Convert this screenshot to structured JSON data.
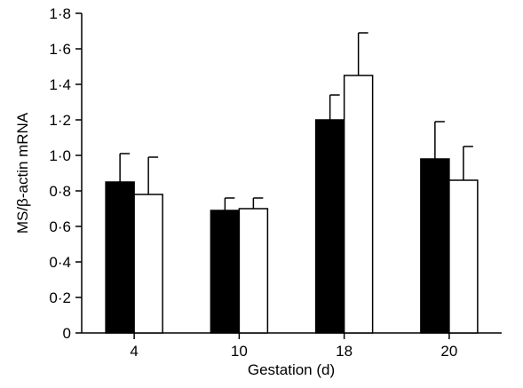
{
  "chart_data": {
    "type": "bar",
    "categories": [
      "4",
      "10",
      "18",
      "20"
    ],
    "series": [
      {
        "color": "#000000",
        "values": [
          0.85,
          0.69,
          1.2,
          0.98
        ],
        "error": [
          0.16,
          0.07,
          0.14,
          0.21
        ]
      },
      {
        "color": "#ffffff",
        "values": [
          0.78,
          0.7,
          1.45,
          0.86
        ],
        "error": [
          0.21,
          0.06,
          0.24,
          0.19
        ]
      }
    ],
    "xlabel": "Gestation (d)",
    "ylabel": "MS/β-actin mRNA",
    "ylim": [
      0,
      1.8
    ],
    "yticks": [
      0,
      0.2,
      0.4,
      0.6,
      0.8,
      1.0,
      1.2,
      1.4,
      1.6,
      1.8
    ],
    "ytick_labels": [
      "0",
      "0·2",
      "0·4",
      "0·6",
      "0·8",
      "1·0",
      "1·2",
      "1·4",
      "1·6",
      "1·8"
    ],
    "grid": false,
    "legend": "none"
  }
}
